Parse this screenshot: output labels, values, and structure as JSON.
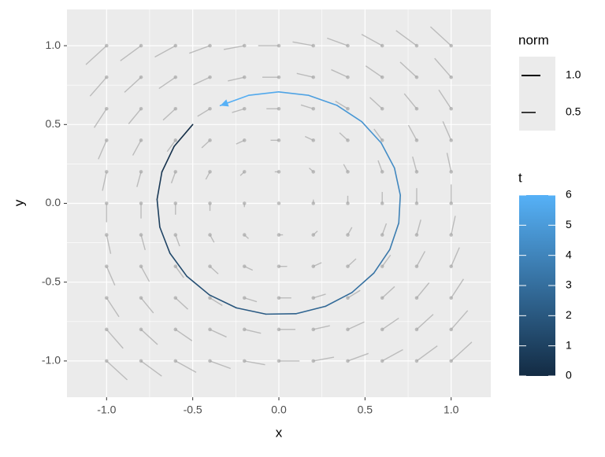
{
  "chart_data": {
    "type": "vector_field",
    "xlabel": "x",
    "ylabel": "y",
    "xlim": [
      -1.23,
      1.23
    ],
    "ylim": [
      -1.23,
      1.23
    ],
    "xticks": [
      {
        "value": -1,
        "label": "-1.0"
      },
      {
        "value": -0.5,
        "label": "-0.5"
      },
      {
        "value": 0,
        "label": "0.0"
      },
      {
        "value": 0.5,
        "label": "0.5"
      },
      {
        "value": 1,
        "label": "1.0"
      }
    ],
    "yticks": [
      {
        "value": -1,
        "label": "-1.0"
      },
      {
        "value": -0.5,
        "label": "-0.5"
      },
      {
        "value": 0,
        "label": "0.0"
      },
      {
        "value": 0.5,
        "label": "0.5"
      },
      {
        "value": 1,
        "label": "1.0"
      }
    ],
    "minor_xticks": [
      -0.75,
      -0.25,
      0.25,
      0.75
    ],
    "minor_yticks": [
      -0.75,
      -0.25,
      0.25,
      0.75
    ],
    "grid": true,
    "field": {
      "color": "#a6a6a6",
      "x": [
        -1,
        -0.8,
        -0.6,
        -0.4,
        -0.2,
        0,
        0.2,
        0.4,
        0.6,
        0.8,
        1
      ],
      "y": [
        -1,
        -0.8,
        -0.6,
        -0.4,
        -0.2,
        0,
        0.2,
        0.4,
        0.6,
        0.8,
        1
      ],
      "xend": [
        [
          -0.88,
          -0.68,
          -0.48,
          -0.28,
          -0.08,
          0.12,
          0.32,
          0.52,
          0.72,
          0.92,
          1.12
        ],
        [
          -0.904,
          -0.704,
          -0.504,
          -0.304,
          -0.104,
          0.096,
          0.296,
          0.496,
          0.696,
          0.896,
          1.096
        ],
        [
          -0.928,
          -0.728,
          -0.528,
          -0.328,
          -0.128,
          0.072,
          0.272,
          0.472,
          0.672,
          0.872,
          1.072
        ],
        [
          -0.952,
          -0.752,
          -0.552,
          -0.352,
          -0.152,
          0.048,
          0.248,
          0.448,
          0.648,
          0.848,
          1.048
        ],
        [
          -0.976,
          -0.776,
          -0.576,
          -0.376,
          -0.176,
          0.024,
          0.224,
          0.424,
          0.624,
          0.824,
          1.024
        ],
        [
          -1,
          -0.8,
          -0.6,
          -0.4,
          -0.2,
          0,
          0.2,
          0.4,
          0.6,
          0.8,
          1
        ],
        [
          -1.024,
          -0.824,
          -0.624,
          -0.424,
          -0.224,
          -0.024,
          0.176,
          0.376,
          0.576,
          0.776,
          0.976
        ],
        [
          -1.048,
          -0.848,
          -0.648,
          -0.448,
          -0.248,
          -0.048,
          0.152,
          0.352,
          0.552,
          0.752,
          0.952
        ],
        [
          -1.072,
          -0.872,
          -0.672,
          -0.472,
          -0.272,
          -0.072,
          0.128,
          0.328,
          0.528,
          0.728,
          0.928
        ],
        [
          -1.096,
          -0.896,
          -0.696,
          -0.496,
          -0.296,
          -0.096,
          0.104,
          0.304,
          0.504,
          0.704,
          0.904
        ],
        [
          -1.12,
          -0.92,
          -0.72,
          -0.52,
          -0.32,
          -0.12,
          0.08,
          0.28,
          0.48,
          0.68,
          0.88
        ]
      ],
      "yend": [
        [
          -1.12,
          -1.096,
          -1.072,
          -1.048,
          -1.024,
          -1,
          -0.976,
          -0.952,
          -0.928,
          -0.904,
          -0.88
        ],
        [
          -0.92,
          -0.896,
          -0.872,
          -0.848,
          -0.824,
          -0.8,
          -0.776,
          -0.752,
          -0.728,
          -0.704,
          -0.68
        ],
        [
          -0.72,
          -0.696,
          -0.672,
          -0.648,
          -0.624,
          -0.6,
          -0.576,
          -0.552,
          -0.528,
          -0.504,
          -0.48
        ],
        [
          -0.52,
          -0.496,
          -0.472,
          -0.448,
          -0.424,
          -0.4,
          -0.376,
          -0.352,
          -0.328,
          -0.304,
          -0.28
        ],
        [
          -0.32,
          -0.296,
          -0.272,
          -0.248,
          -0.224,
          -0.2,
          -0.176,
          -0.152,
          -0.128,
          -0.104,
          -0.08
        ],
        [
          -0.12,
          -0.096,
          -0.072,
          -0.048,
          -0.024,
          0,
          0.024,
          0.048,
          0.072,
          0.096,
          0.12
        ],
        [
          0.08,
          0.104,
          0.128,
          0.152,
          0.176,
          0.2,
          0.224,
          0.248,
          0.272,
          0.296,
          0.32
        ],
        [
          0.28,
          0.304,
          0.328,
          0.352,
          0.376,
          0.4,
          0.424,
          0.448,
          0.472,
          0.496,
          0.52
        ],
        [
          0.48,
          0.504,
          0.528,
          0.552,
          0.576,
          0.6,
          0.624,
          0.648,
          0.672,
          0.696,
          0.72
        ],
        [
          0.68,
          0.704,
          0.728,
          0.752,
          0.776,
          0.8,
          0.824,
          0.848,
          0.872,
          0.896,
          0.92
        ],
        [
          0.88,
          0.904,
          0.928,
          0.952,
          0.976,
          1,
          1.024,
          1.048,
          1.072,
          1.096,
          1.12
        ]
      ]
    },
    "trajectory": {
      "color_low": "#132B43",
      "color_high": "#56B1F7",
      "t": [
        0,
        0.25,
        0.5,
        0.75,
        1,
        1.25,
        1.5,
        1.75,
        2,
        2.25,
        2.5,
        2.75,
        3,
        3.25,
        3.5,
        3.75,
        4,
        4.25,
        4.5,
        4.75,
        5,
        5.25,
        5.5,
        5.75,
        6
      ],
      "x": [
        -0.5,
        -0.608,
        -0.679,
        -0.707,
        -0.691,
        -0.632,
        -0.534,
        -0.403,
        -0.247,
        -0.075,
        0.101,
        0.271,
        0.424,
        0.551,
        0.644,
        0.696,
        0.705,
        0.671,
        0.594,
        0.481,
        0.338,
        0.173,
        -0.002,
        -0.176,
        -0.34
      ],
      "y": [
        0.5,
        0.361,
        0.199,
        0.025,
        -0.151,
        -0.317,
        -0.463,
        -0.581,
        -0.663,
        -0.703,
        -0.7,
        -0.653,
        -0.566,
        -0.443,
        -0.293,
        -0.125,
        0.052,
        0.224,
        0.383,
        0.518,
        0.621,
        0.685,
        0.707,
        0.685,
        0.62
      ]
    },
    "legend_norm": {
      "title": "norm",
      "values": [
        {
          "value": 1,
          "label": "1.0"
        },
        {
          "value": 0.5,
          "label": "0.5"
        }
      ]
    },
    "legend_t": {
      "title": "t",
      "lim": [
        0,
        6
      ],
      "ticks": [
        0,
        1,
        2,
        3,
        4,
        5,
        6
      ]
    }
  }
}
